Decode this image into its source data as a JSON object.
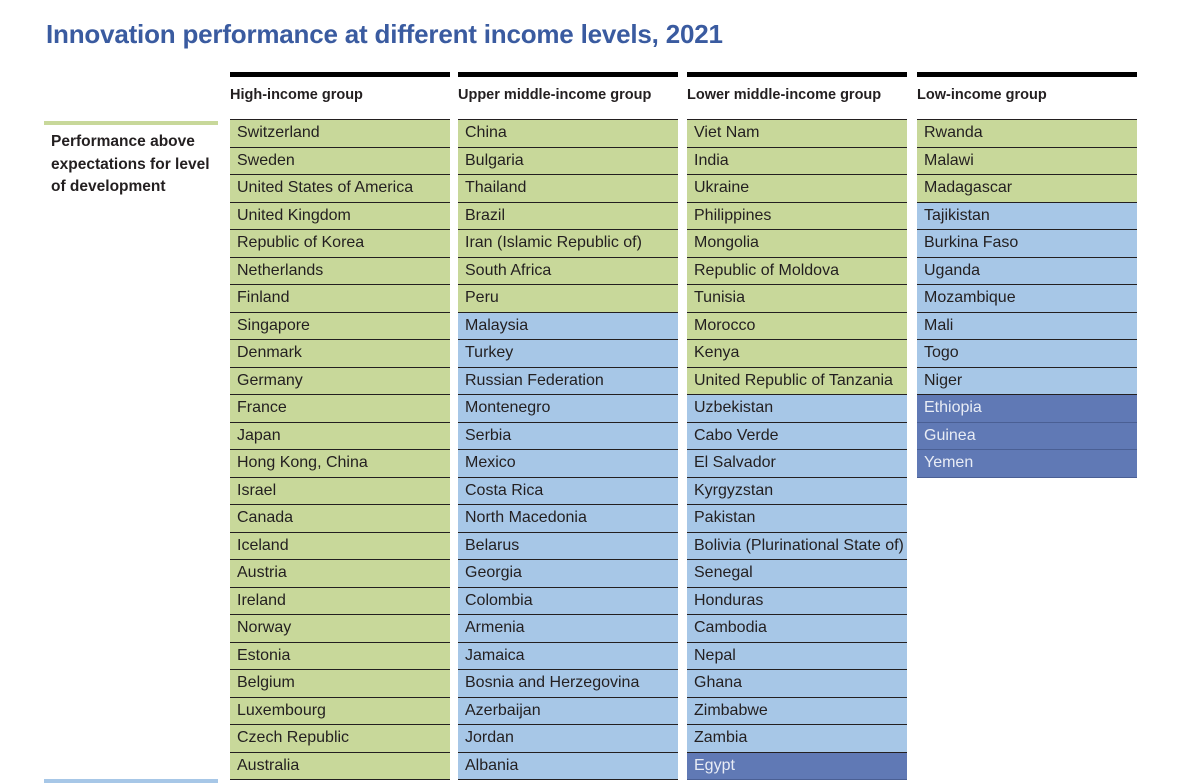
{
  "chart_data": {
    "type": "table",
    "title": "Innovation performance at different income levels, 2021",
    "legend": [
      {
        "key": "above",
        "label": "Performance above expectations for level of development",
        "color": "#c8d89a"
      },
      {
        "key": "within",
        "label": "",
        "color": "#a7c7e7"
      },
      {
        "key": "below",
        "label": "",
        "color": "#6079b5"
      }
    ],
    "columns": [
      {
        "name": "High-income group",
        "rows": [
          {
            "country": "Switzerland",
            "status": "above"
          },
          {
            "country": "Sweden",
            "status": "above"
          },
          {
            "country": "United States of America",
            "status": "above"
          },
          {
            "country": "United Kingdom",
            "status": "above"
          },
          {
            "country": "Republic of Korea",
            "status": "above"
          },
          {
            "country": "Netherlands",
            "status": "above"
          },
          {
            "country": "Finland",
            "status": "above"
          },
          {
            "country": "Singapore",
            "status": "above"
          },
          {
            "country": "Denmark",
            "status": "above"
          },
          {
            "country": "Germany",
            "status": "above"
          },
          {
            "country": "France",
            "status": "above"
          },
          {
            "country": "Japan",
            "status": "above"
          },
          {
            "country": "Hong Kong, China",
            "status": "above"
          },
          {
            "country": "Israel",
            "status": "above"
          },
          {
            "country": "Canada",
            "status": "above"
          },
          {
            "country": "Iceland",
            "status": "above"
          },
          {
            "country": "Austria",
            "status": "above"
          },
          {
            "country": "Ireland",
            "status": "above"
          },
          {
            "country": "Norway",
            "status": "above"
          },
          {
            "country": "Estonia",
            "status": "above"
          },
          {
            "country": "Belgium",
            "status": "above"
          },
          {
            "country": "Luxembourg",
            "status": "above"
          },
          {
            "country": "Czech Republic",
            "status": "above"
          },
          {
            "country": "Australia",
            "status": "above"
          }
        ]
      },
      {
        "name": "Upper middle-income group",
        "rows": [
          {
            "country": "China",
            "status": "above"
          },
          {
            "country": "Bulgaria",
            "status": "above"
          },
          {
            "country": "Thailand",
            "status": "above"
          },
          {
            "country": "Brazil",
            "status": "above"
          },
          {
            "country": "Iran (Islamic Republic of)",
            "status": "above"
          },
          {
            "country": "South Africa",
            "status": "above"
          },
          {
            "country": "Peru",
            "status": "above"
          },
          {
            "country": "Malaysia",
            "status": "within"
          },
          {
            "country": "Turkey",
            "status": "within"
          },
          {
            "country": "Russian Federation",
            "status": "within"
          },
          {
            "country": "Montenegro",
            "status": "within"
          },
          {
            "country": "Serbia",
            "status": "within"
          },
          {
            "country": "Mexico",
            "status": "within"
          },
          {
            "country": "Costa Rica",
            "status": "within"
          },
          {
            "country": "North Macedonia",
            "status": "within"
          },
          {
            "country": "Belarus",
            "status": "within"
          },
          {
            "country": "Georgia",
            "status": "within"
          },
          {
            "country": "Colombia",
            "status": "within"
          },
          {
            "country": "Armenia",
            "status": "within"
          },
          {
            "country": "Jamaica",
            "status": "within"
          },
          {
            "country": "Bosnia and Herzegovina",
            "status": "within"
          },
          {
            "country": "Azerbaijan",
            "status": "within"
          },
          {
            "country": "Jordan",
            "status": "within"
          },
          {
            "country": "Albania",
            "status": "within"
          }
        ]
      },
      {
        "name": "Lower middle-income group",
        "rows": [
          {
            "country": "Viet Nam",
            "status": "above"
          },
          {
            "country": "India",
            "status": "above"
          },
          {
            "country": "Ukraine",
            "status": "above"
          },
          {
            "country": "Philippines",
            "status": "above"
          },
          {
            "country": "Mongolia",
            "status": "above"
          },
          {
            "country": "Republic of Moldova",
            "status": "above"
          },
          {
            "country": "Tunisia",
            "status": "above"
          },
          {
            "country": "Morocco",
            "status": "above"
          },
          {
            "country": "Kenya",
            "status": "above"
          },
          {
            "country": "United Republic of Tanzania",
            "status": "above"
          },
          {
            "country": "Uzbekistan",
            "status": "within"
          },
          {
            "country": "Cabo Verde",
            "status": "within"
          },
          {
            "country": "El Salvador",
            "status": "within"
          },
          {
            "country": "Kyrgyzstan",
            "status": "within"
          },
          {
            "country": "Pakistan",
            "status": "within"
          },
          {
            "country": "Bolivia (Plurinational State of)",
            "status": "within"
          },
          {
            "country": "Senegal",
            "status": "within"
          },
          {
            "country": "Honduras",
            "status": "within"
          },
          {
            "country": "Cambodia",
            "status": "within"
          },
          {
            "country": "Nepal",
            "status": "within"
          },
          {
            "country": "Ghana",
            "status": "within"
          },
          {
            "country": "Zimbabwe",
            "status": "within"
          },
          {
            "country": "Zambia",
            "status": "within"
          },
          {
            "country": "Egypt",
            "status": "below"
          }
        ]
      },
      {
        "name": "Low-income group",
        "rows": [
          {
            "country": "Rwanda",
            "status": "above"
          },
          {
            "country": "Malawi",
            "status": "above"
          },
          {
            "country": "Madagascar",
            "status": "above"
          },
          {
            "country": "Tajikistan",
            "status": "within"
          },
          {
            "country": "Burkina Faso",
            "status": "within"
          },
          {
            "country": "Uganda",
            "status": "within"
          },
          {
            "country": "Mozambique",
            "status": "within"
          },
          {
            "country": "Mali",
            "status": "within"
          },
          {
            "country": "Togo",
            "status": "within"
          },
          {
            "country": "Niger",
            "status": "within"
          },
          {
            "country": "Ethiopia",
            "status": "below"
          },
          {
            "country": "Guinea",
            "status": "below"
          },
          {
            "country": "Yemen",
            "status": "below"
          }
        ]
      }
    ]
  }
}
